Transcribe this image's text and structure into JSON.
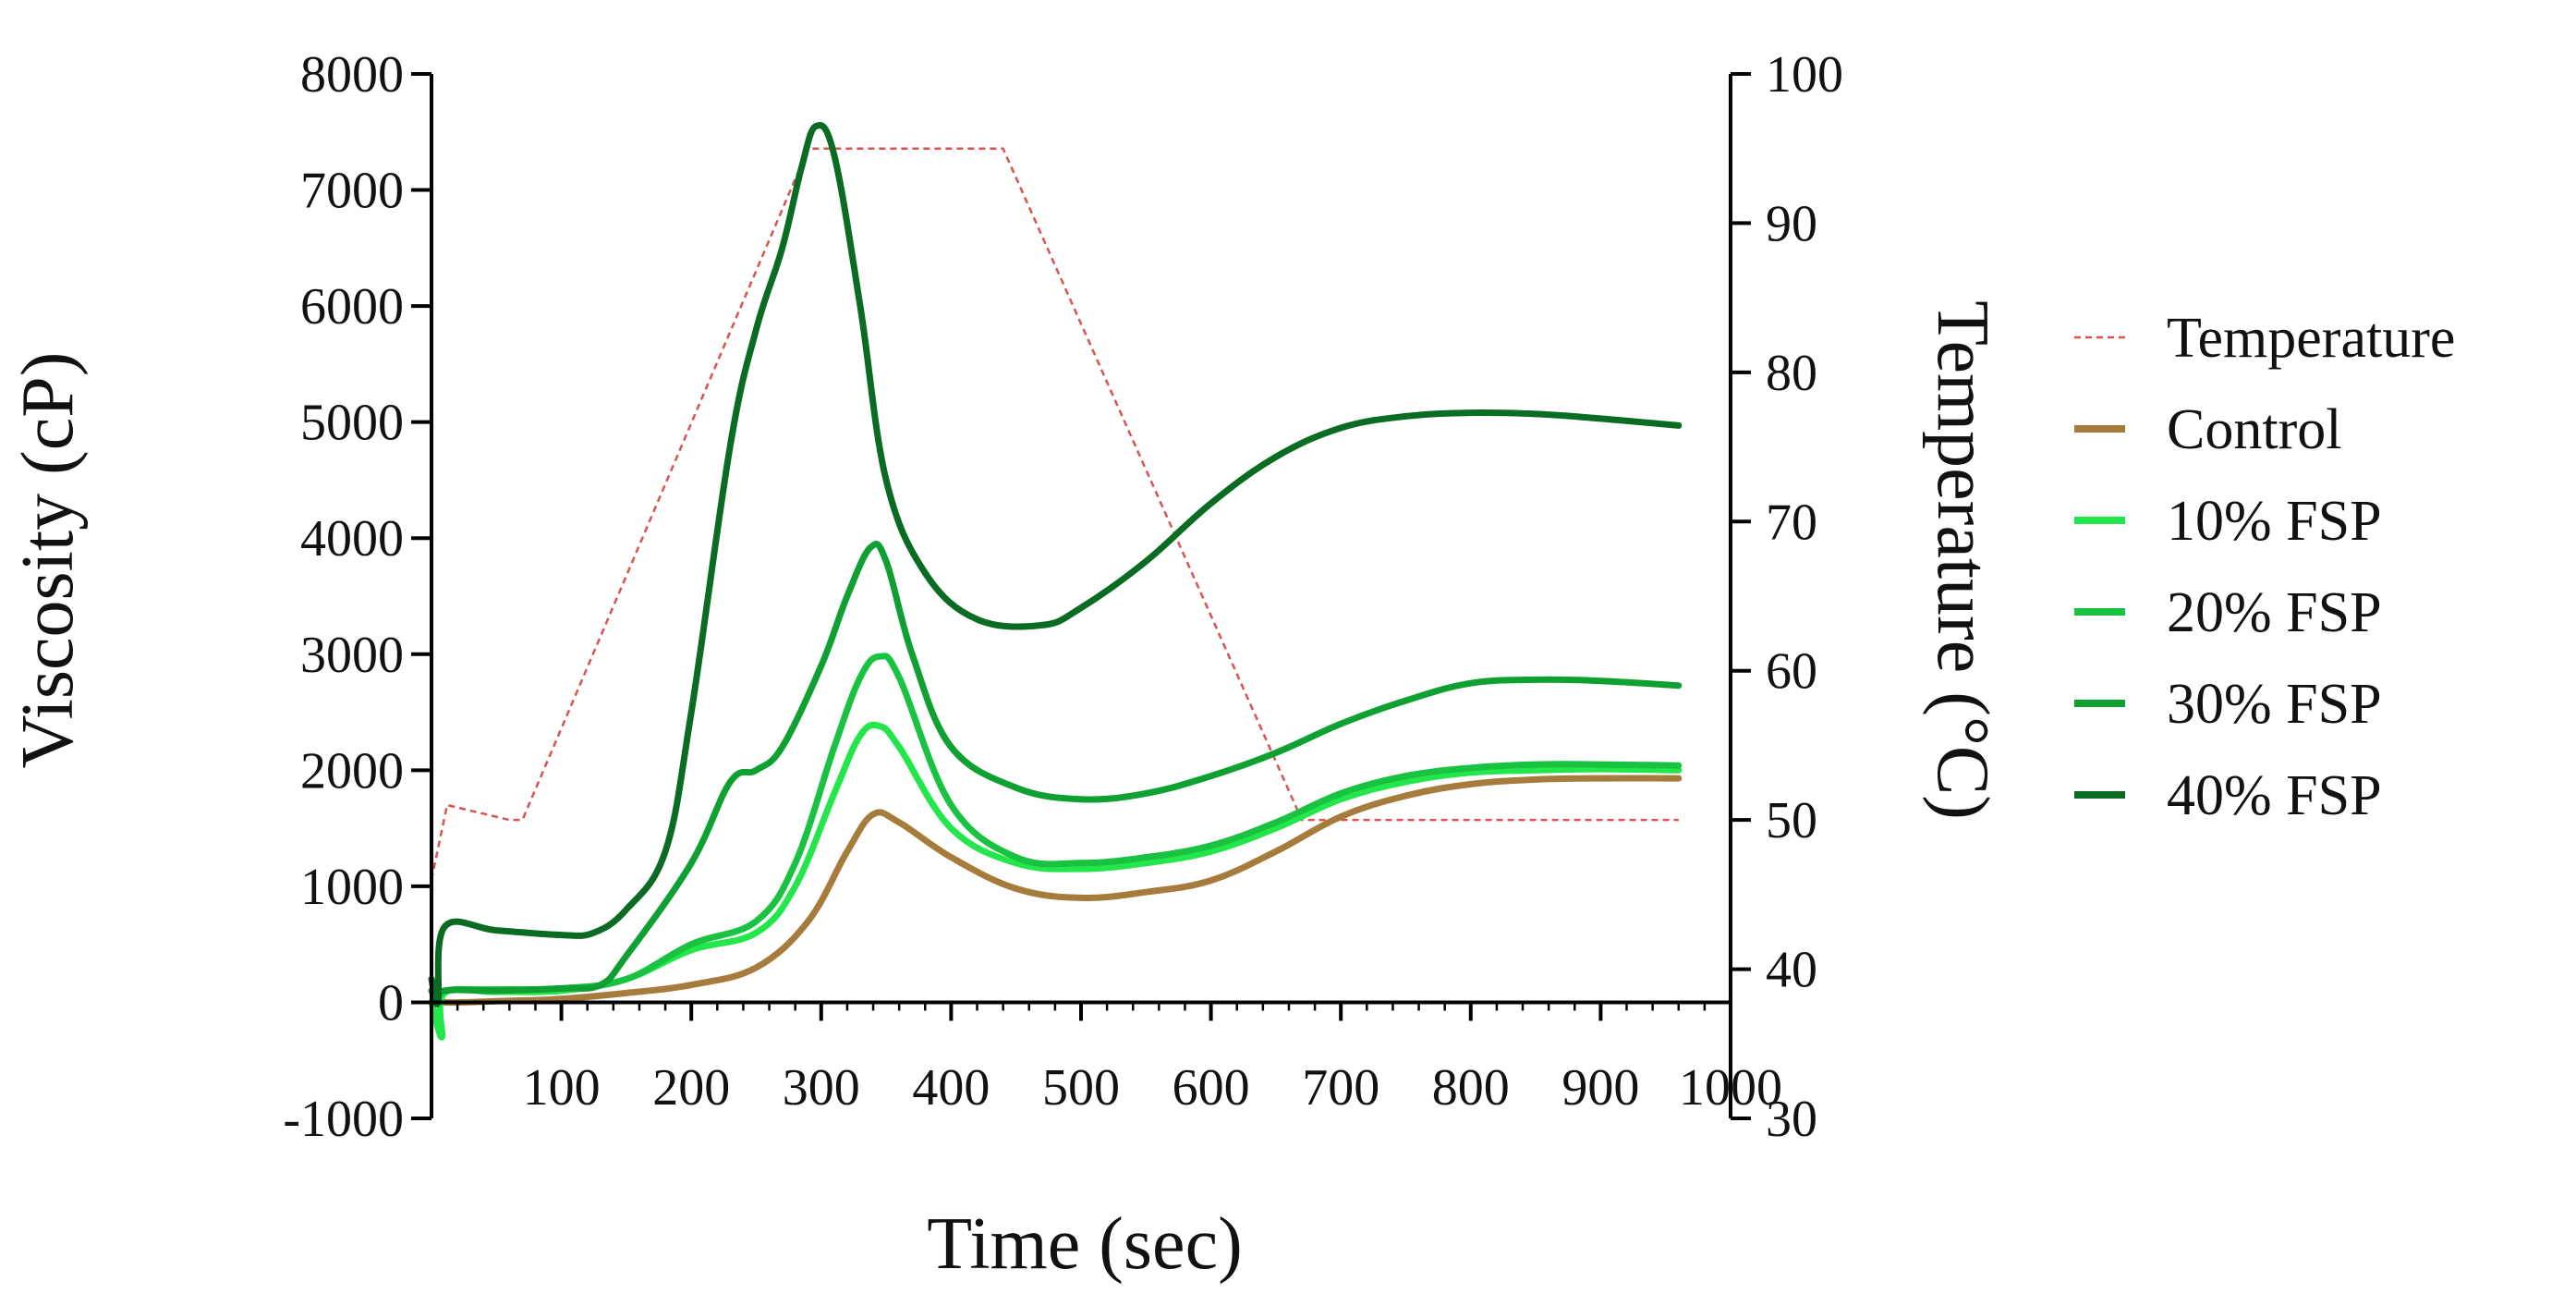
{
  "chart_data": {
    "type": "line",
    "title": "",
    "xlabel": "Time (sec)",
    "ylabel": "Viscosity (cP)",
    "y2label": "Temperature (°C)",
    "xlim": [
      0,
      1000
    ],
    "ylim": [
      -1000,
      8000
    ],
    "y2lim": [
      30,
      100
    ],
    "xticks": [
      "100",
      "200",
      "300",
      "400",
      "500",
      "600",
      "700",
      "800",
      "900",
      "1000"
    ],
    "yticks": [
      "-1000",
      "0",
      "1000",
      "2000",
      "3000",
      "4000",
      "5000",
      "6000",
      "7000",
      "8000"
    ],
    "y2ticks": [
      "30",
      "40",
      "50",
      "60",
      "70",
      "80",
      "90",
      "100"
    ],
    "grid": false,
    "legend_position": "right",
    "temperature": {
      "name": "Temperature",
      "color": "#d9534f",
      "x": [
        0,
        12,
        60,
        70,
        290,
        440,
        670,
        960
      ],
      "y": [
        46,
        51,
        50,
        50,
        95,
        95,
        50,
        50
      ]
    },
    "series": [
      {
        "name": "Control",
        "color": "#a67c3d",
        "x": [
          0,
          5,
          10,
          50,
          100,
          150,
          200,
          250,
          290,
          320,
          340,
          360,
          400,
          450,
          500,
          550,
          600,
          650,
          700,
          750,
          800,
          850,
          900,
          960
        ],
        "y": [
          200,
          50,
          0,
          10,
          30,
          80,
          150,
          300,
          700,
          1300,
          1620,
          1550,
          1250,
          980,
          900,
          950,
          1050,
          1300,
          1600,
          1780,
          1880,
          1920,
          1930,
          1930
        ]
      },
      {
        "name": "10% FSP",
        "color": "#22e64a",
        "x": [
          0,
          8,
          10,
          50,
          100,
          150,
          200,
          250,
          280,
          310,
          330,
          345,
          360,
          400,
          450,
          500,
          550,
          600,
          650,
          700,
          750,
          800,
          850,
          900,
          960
        ],
        "y": [
          0,
          -300,
          80,
          90,
          100,
          200,
          450,
          600,
          1000,
          1800,
          2300,
          2380,
          2200,
          1500,
          1200,
          1150,
          1200,
          1300,
          1500,
          1750,
          1900,
          1980,
          2000,
          2010,
          2000
        ]
      },
      {
        "name": "20% FSP",
        "color": "#19c240",
        "x": [
          0,
          5,
          10,
          50,
          100,
          150,
          200,
          250,
          280,
          310,
          330,
          345,
          360,
          400,
          450,
          500,
          550,
          600,
          650,
          700,
          750,
          800,
          850,
          900,
          960
        ],
        "y": [
          100,
          0,
          100,
          110,
          120,
          200,
          500,
          700,
          1200,
          2200,
          2800,
          2980,
          2800,
          1700,
          1250,
          1200,
          1250,
          1350,
          1550,
          1800,
          1950,
          2020,
          2050,
          2050,
          2040
        ]
      },
      {
        "name": "30% FSP",
        "color": "#0fa032",
        "x": [
          0,
          5,
          10,
          50,
          100,
          130,
          150,
          200,
          230,
          250,
          270,
          300,
          320,
          338,
          350,
          370,
          400,
          450,
          500,
          550,
          600,
          650,
          700,
          750,
          800,
          850,
          900,
          960
        ],
        "y": [
          100,
          0,
          100,
          100,
          120,
          150,
          400,
          1200,
          1900,
          2000,
          2200,
          2900,
          3500,
          3920,
          3800,
          3000,
          2200,
          1850,
          1750,
          1800,
          1950,
          2150,
          2400,
          2600,
          2750,
          2780,
          2770,
          2730
        ]
      },
      {
        "name": "40% FSP",
        "color": "#0a6b22",
        "x": [
          0,
          5,
          10,
          50,
          100,
          125,
          150,
          180,
          200,
          230,
          250,
          270,
          285,
          296,
          310,
          330,
          350,
          380,
          420,
          470,
          500,
          550,
          600,
          650,
          700,
          750,
          800,
          850,
          900,
          960
        ],
        "y": [
          200,
          0,
          650,
          620,
          580,
          600,
          800,
          1300,
          2500,
          4800,
          5800,
          6500,
          7200,
          7550,
          7300,
          6000,
          4500,
          3700,
          3300,
          3250,
          3400,
          3800,
          4300,
          4700,
          4950,
          5050,
          5080,
          5070,
          5030,
          4970
        ]
      }
    ]
  }
}
